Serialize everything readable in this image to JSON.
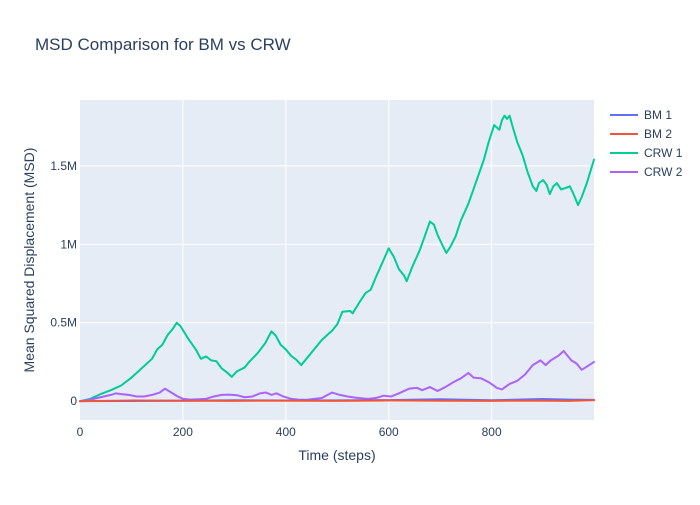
{
  "chart_data": {
    "type": "line",
    "title": "MSD Comparison for BM vs CRW",
    "xlabel": "Time (steps)",
    "ylabel": "Mean Squared Displacement (MSD)",
    "xlim": [
      0,
      999
    ],
    "ylim": [
      -120000,
      1920000
    ],
    "x_ticks": [
      0,
      200,
      400,
      600,
      800
    ],
    "x_tick_labels": [
      "0",
      "200",
      "400",
      "600",
      "800"
    ],
    "y_ticks": [
      0,
      500000,
      1000000,
      1500000
    ],
    "y_tick_labels": [
      "0",
      "0.5M",
      "1M",
      "1.5M"
    ],
    "grid": true,
    "legend_position": "right",
    "plot_bg": "#E5ECF6",
    "series": [
      {
        "name": "BM 1",
        "color": "#636EFA",
        "points": [
          [
            0,
            0
          ],
          [
            100,
            1000
          ],
          [
            200,
            3000
          ],
          [
            300,
            6000
          ],
          [
            400,
            4000
          ],
          [
            500,
            5000
          ],
          [
            600,
            7000
          ],
          [
            700,
            12000
          ],
          [
            800,
            6000
          ],
          [
            850,
            10000
          ],
          [
            900,
            14000
          ],
          [
            950,
            10000
          ],
          [
            999,
            8000
          ]
        ]
      },
      {
        "name": "BM 2",
        "color": "#EF553B",
        "points": [
          [
            0,
            0
          ],
          [
            100,
            4000
          ],
          [
            200,
            3000
          ],
          [
            300,
            2000
          ],
          [
            400,
            3000
          ],
          [
            500,
            2000
          ],
          [
            600,
            4000
          ],
          [
            700,
            3000
          ],
          [
            800,
            2000
          ],
          [
            900,
            3000
          ],
          [
            950,
            2000
          ],
          [
            999,
            6000
          ]
        ]
      },
      {
        "name": "CRW 1",
        "color": "#00CC96",
        "points": [
          [
            0,
            0
          ],
          [
            20,
            15000
          ],
          [
            40,
            45000
          ],
          [
            60,
            70000
          ],
          [
            80,
            100000
          ],
          [
            100,
            150000
          ],
          [
            120,
            210000
          ],
          [
            140,
            270000
          ],
          [
            150,
            330000
          ],
          [
            160,
            360000
          ],
          [
            170,
            420000
          ],
          [
            180,
            460000
          ],
          [
            188,
            500000
          ],
          [
            195,
            480000
          ],
          [
            210,
            400000
          ],
          [
            225,
            330000
          ],
          [
            235,
            270000
          ],
          [
            245,
            285000
          ],
          [
            255,
            260000
          ],
          [
            265,
            255000
          ],
          [
            275,
            210000
          ],
          [
            285,
            185000
          ],
          [
            295,
            155000
          ],
          [
            305,
            190000
          ],
          [
            320,
            215000
          ],
          [
            330,
            255000
          ],
          [
            345,
            305000
          ],
          [
            360,
            370000
          ],
          [
            372,
            445000
          ],
          [
            380,
            420000
          ],
          [
            390,
            360000
          ],
          [
            400,
            330000
          ],
          [
            410,
            290000
          ],
          [
            420,
            265000
          ],
          [
            430,
            230000
          ],
          [
            440,
            270000
          ],
          [
            455,
            330000
          ],
          [
            470,
            390000
          ],
          [
            480,
            420000
          ],
          [
            490,
            450000
          ],
          [
            500,
            490000
          ],
          [
            510,
            570000
          ],
          [
            525,
            575000
          ],
          [
            530,
            560000
          ],
          [
            545,
            640000
          ],
          [
            555,
            690000
          ],
          [
            565,
            710000
          ],
          [
            575,
            790000
          ],
          [
            590,
            900000
          ],
          [
            600,
            975000
          ],
          [
            610,
            920000
          ],
          [
            620,
            840000
          ],
          [
            630,
            800000
          ],
          [
            635,
            765000
          ],
          [
            645,
            850000
          ],
          [
            660,
            960000
          ],
          [
            670,
            1050000
          ],
          [
            680,
            1145000
          ],
          [
            688,
            1125000
          ],
          [
            695,
            1060000
          ],
          [
            705,
            990000
          ],
          [
            712,
            945000
          ],
          [
            720,
            985000
          ],
          [
            730,
            1050000
          ],
          [
            740,
            1150000
          ],
          [
            755,
            1260000
          ],
          [
            770,
            1400000
          ],
          [
            785,
            1540000
          ],
          [
            795,
            1660000
          ],
          [
            805,
            1760000
          ],
          [
            815,
            1730000
          ],
          [
            820,
            1790000
          ],
          [
            825,
            1820000
          ],
          [
            830,
            1800000
          ],
          [
            835,
            1820000
          ],
          [
            840,
            1760000
          ],
          [
            850,
            1650000
          ],
          [
            860,
            1570000
          ],
          [
            870,
            1460000
          ],
          [
            880,
            1370000
          ],
          [
            887,
            1340000
          ],
          [
            892,
            1390000
          ],
          [
            900,
            1410000
          ],
          [
            907,
            1380000
          ],
          [
            913,
            1320000
          ],
          [
            920,
            1370000
          ],
          [
            927,
            1390000
          ],
          [
            935,
            1350000
          ],
          [
            945,
            1360000
          ],
          [
            952,
            1370000
          ],
          [
            958,
            1330000
          ],
          [
            968,
            1250000
          ],
          [
            975,
            1300000
          ],
          [
            985,
            1390000
          ],
          [
            999,
            1540000
          ]
        ]
      },
      {
        "name": "CRW 2",
        "color": "#AB63FA",
        "points": [
          [
            0,
            0
          ],
          [
            20,
            10000
          ],
          [
            40,
            25000
          ],
          [
            60,
            40000
          ],
          [
            70,
            50000
          ],
          [
            80,
            45000
          ],
          [
            95,
            40000
          ],
          [
            110,
            30000
          ],
          [
            125,
            30000
          ],
          [
            140,
            40000
          ],
          [
            155,
            55000
          ],
          [
            165,
            80000
          ],
          [
            175,
            60000
          ],
          [
            190,
            30000
          ],
          [
            200,
            15000
          ],
          [
            215,
            10000
          ],
          [
            230,
            12000
          ],
          [
            245,
            15000
          ],
          [
            260,
            30000
          ],
          [
            275,
            40000
          ],
          [
            290,
            42000
          ],
          [
            305,
            38000
          ],
          [
            320,
            25000
          ],
          [
            335,
            30000
          ],
          [
            350,
            50000
          ],
          [
            362,
            55000
          ],
          [
            372,
            40000
          ],
          [
            382,
            50000
          ],
          [
            395,
            30000
          ],
          [
            410,
            15000
          ],
          [
            425,
            10000
          ],
          [
            440,
            8000
          ],
          [
            455,
            15000
          ],
          [
            470,
            20000
          ],
          [
            490,
            55000
          ],
          [
            505,
            40000
          ],
          [
            520,
            30000
          ],
          [
            540,
            20000
          ],
          [
            560,
            15000
          ],
          [
            575,
            20000
          ],
          [
            590,
            35000
          ],
          [
            605,
            30000
          ],
          [
            620,
            50000
          ],
          [
            640,
            80000
          ],
          [
            655,
            85000
          ],
          [
            665,
            70000
          ],
          [
            680,
            90000
          ],
          [
            695,
            65000
          ],
          [
            710,
            90000
          ],
          [
            725,
            120000
          ],
          [
            740,
            145000
          ],
          [
            755,
            180000
          ],
          [
            765,
            150000
          ],
          [
            780,
            145000
          ],
          [
            795,
            120000
          ],
          [
            810,
            85000
          ],
          [
            820,
            75000
          ],
          [
            835,
            110000
          ],
          [
            850,
            130000
          ],
          [
            865,
            170000
          ],
          [
            880,
            230000
          ],
          [
            895,
            260000
          ],
          [
            905,
            230000
          ],
          [
            915,
            260000
          ],
          [
            930,
            290000
          ],
          [
            940,
            320000
          ],
          [
            955,
            260000
          ],
          [
            965,
            240000
          ],
          [
            975,
            200000
          ],
          [
            985,
            220000
          ],
          [
            999,
            250000
          ]
        ]
      }
    ]
  }
}
